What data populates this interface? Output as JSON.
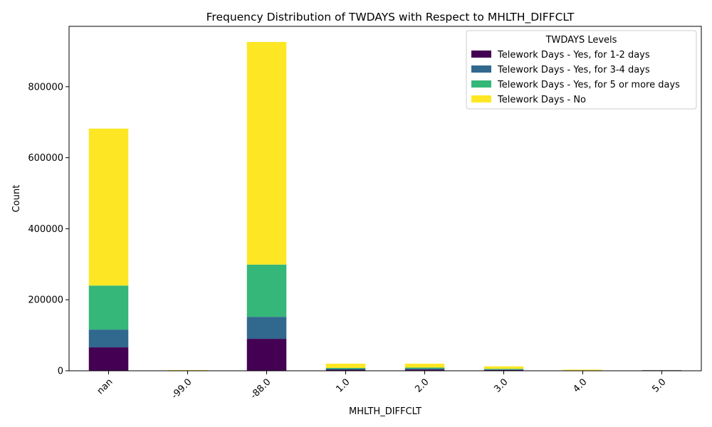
{
  "chart_data": {
    "type": "bar",
    "stacked": true,
    "title": "Frequency Distribution of TWDAYS with Respect to MHLTH_DIFFCLT",
    "xlabel": "MHLTH_DIFFCLT",
    "ylabel": "Count",
    "categories": [
      "nan",
      "-99.0",
      "-88.0",
      "1.0",
      "2.0",
      "3.0",
      "4.0",
      "5.0"
    ],
    "ylim": [
      0,
      970000
    ],
    "yticks": [
      0,
      200000,
      400000,
      600000,
      800000
    ],
    "ytick_labels": [
      "0",
      "200000",
      "400000",
      "600000",
      "800000"
    ],
    "grid": false,
    "legend": {
      "title": "TWDAYS Levels",
      "placement": "top-right"
    },
    "series": [
      {
        "name": "Telework Days - Yes, for 1-2 days",
        "color": "#440154",
        "values": [
          66000,
          300,
          90000,
          3000,
          3500,
          2000,
          500,
          1500
        ]
      },
      {
        "name": "Telework Days - Yes, for 3-4 days",
        "color": "#31688e",
        "values": [
          50000,
          200,
          62000,
          2000,
          2500,
          1500,
          300,
          200
        ]
      },
      {
        "name": "Telework Days - Yes, for 5 or more days",
        "color": "#35b779",
        "values": [
          124000,
          300,
          147000,
          3000,
          3000,
          2000,
          400,
          200
        ]
      },
      {
        "name": "Telework Days - No",
        "color": "#fde725",
        "values": [
          442000,
          1200,
          627000,
          12000,
          11000,
          7000,
          2000,
          100
        ]
      }
    ]
  }
}
